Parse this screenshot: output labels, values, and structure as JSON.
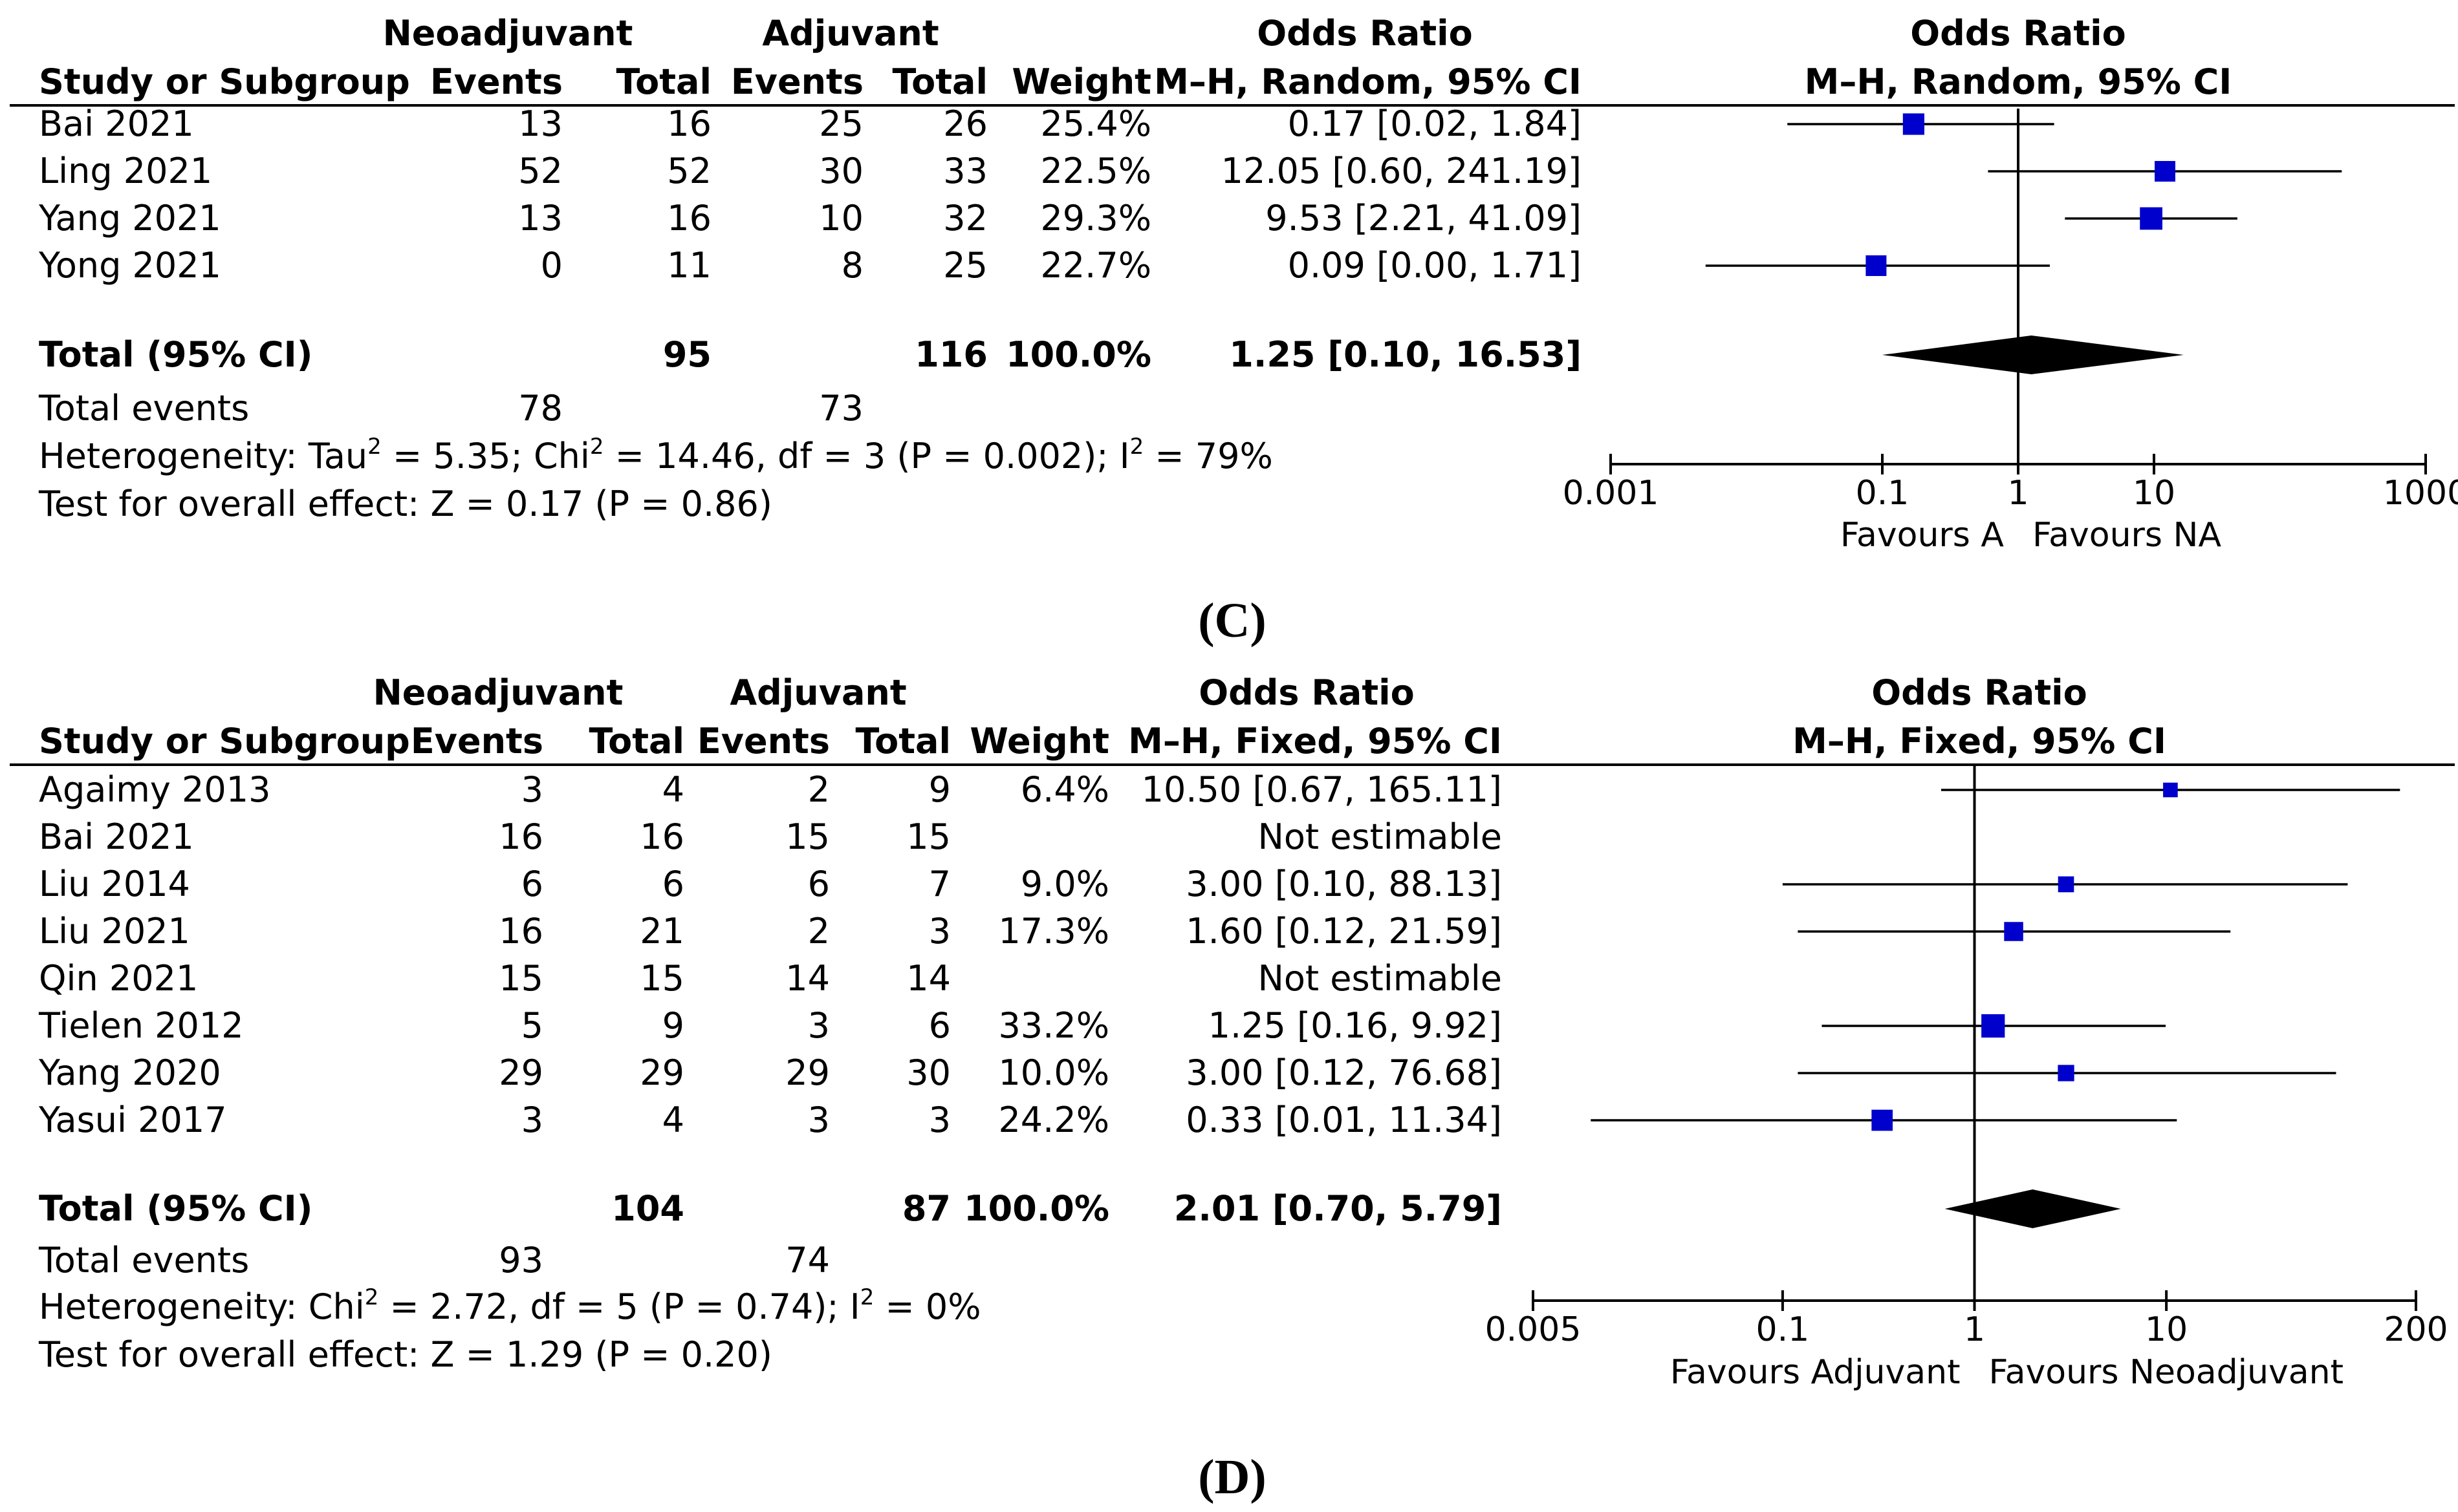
{
  "chart_data": [
    {
      "type": "forest",
      "panel": "(C)",
      "panel_letter": "C",
      "headers": {
        "group1": "Neoadjuvant",
        "group2": "Adjuvant",
        "study": "Study or Subgroup",
        "events": "Events",
        "total": "Total",
        "weight": "Weight",
        "or_title": "Odds Ratio",
        "or_method": "M–H, Random, 95% CI",
        "plot_title": "Odds Ratio",
        "plot_method": "M–H, Random, 95% CI"
      },
      "studies": [
        {
          "name": "Bai 2021",
          "e1": "13",
          "t1": "16",
          "e2": "25",
          "t2": "26",
          "weight": "25.4%",
          "or_text": "0.17 [0.02, 1.84]",
          "or": 0.17,
          "lo": 0.02,
          "hi": 1.84
        },
        {
          "name": "Ling 2021",
          "e1": "52",
          "t1": "52",
          "e2": "30",
          "t2": "33",
          "weight": "22.5%",
          "or_text": "12.05 [0.60, 241.19]",
          "or": 12.05,
          "lo": 0.6,
          "hi": 241.19
        },
        {
          "name": "Yang 2021",
          "e1": "13",
          "t1": "16",
          "e2": "10",
          "t2": "32",
          "weight": "29.3%",
          "or_text": "9.53 [2.21, 41.09]",
          "or": 9.53,
          "lo": 2.21,
          "hi": 41.09
        },
        {
          "name": "Yong 2021",
          "e1": "0",
          "t1": "11",
          "e2": "8",
          "t2": "25",
          "weight": "22.7%",
          "or_text": "0.09 [0.00, 1.71]",
          "or": 0.09,
          "lo": 0.005,
          "hi": 1.71
        }
      ],
      "total": {
        "label": "Total (95% CI)",
        "t1": "95",
        "t2": "116",
        "weight": "100.0%",
        "or_text": "1.25 [0.10, 16.53]",
        "or": 1.25,
        "lo": 0.1,
        "hi": 16.53
      },
      "total_events": {
        "label": "Total events",
        "e1": "78",
        "e2": "73"
      },
      "heterogeneity": {
        "prefix": "Heterogeneity: Tau",
        "s1": "2",
        "m1": " = 5.35; Chi",
        "s2": "2",
        "m2": " = 14.46, df = 3 (P = 0.002); I",
        "s3": "2",
        "m3": " = 79%"
      },
      "overall": "Test for overall effect: Z = 0.17 (P = 0.86)",
      "axis": {
        "scale": "log",
        "ticks": [
          0.001,
          0.1,
          1,
          10,
          1000
        ],
        "tick_labels": [
          "0.001",
          "0.1",
          "1",
          "10",
          "1000"
        ],
        "xlim": [
          0.001,
          1000
        ]
      },
      "favours_left": "Favours A",
      "favours_right": "Favours NA",
      "marker_color": "#0000cc"
    },
    {
      "type": "forest",
      "panel": "(D)",
      "panel_letter": "D",
      "headers": {
        "group1": "Neoadjuvant",
        "group2": "Adjuvant",
        "study": "Study or Subgroup",
        "events": "Events",
        "total": "Total",
        "weight": "Weight",
        "or_title": "Odds Ratio",
        "or_method": "M–H, Fixed, 95% CI",
        "plot_title": "Odds Ratio",
        "plot_method": "M–H, Fixed, 95% CI"
      },
      "studies": [
        {
          "name": "Agaimy 2013",
          "e1": "3",
          "t1": "4",
          "e2": "2",
          "t2": "9",
          "weight": "6.4%",
          "or_text": "10.50 [0.67, 165.11]",
          "or": 10.5,
          "lo": 0.67,
          "hi": 165.11
        },
        {
          "name": "Bai 2021",
          "e1": "16",
          "t1": "16",
          "e2": "15",
          "t2": "15",
          "weight": "",
          "or_text": "Not estimable",
          "or": null,
          "lo": null,
          "hi": null
        },
        {
          "name": "Liu 2014",
          "e1": "6",
          "t1": "6",
          "e2": "6",
          "t2": "7",
          "weight": "9.0%",
          "or_text": "3.00 [0.10, 88.13]",
          "or": 3.0,
          "lo": 0.1,
          "hi": 88.13
        },
        {
          "name": "Liu 2021",
          "e1": "16",
          "t1": "21",
          "e2": "2",
          "t2": "3",
          "weight": "17.3%",
          "or_text": "1.60 [0.12, 21.59]",
          "or": 1.6,
          "lo": 0.12,
          "hi": 21.59
        },
        {
          "name": "Qin 2021",
          "e1": "15",
          "t1": "15",
          "e2": "14",
          "t2": "14",
          "weight": "",
          "or_text": "Not estimable",
          "or": null,
          "lo": null,
          "hi": null
        },
        {
          "name": "Tielen 2012",
          "e1": "5",
          "t1": "9",
          "e2": "3",
          "t2": "6",
          "weight": "33.2%",
          "or_text": "1.25 [0.16, 9.92]",
          "or": 1.25,
          "lo": 0.16,
          "hi": 9.92
        },
        {
          "name": "Yang 2020",
          "e1": "29",
          "t1": "29",
          "e2": "29",
          "t2": "30",
          "weight": "10.0%",
          "or_text": "3.00 [0.12, 76.68]",
          "or": 3.0,
          "lo": 0.12,
          "hi": 76.68
        },
        {
          "name": "Yasui 2017",
          "e1": "3",
          "t1": "4",
          "e2": "3",
          "t2": "3",
          "weight": "24.2%",
          "or_text": "0.33 [0.01, 11.34]",
          "or": 0.33,
          "lo": 0.01,
          "hi": 11.34
        }
      ],
      "total": {
        "label": "Total (95% CI)",
        "t1": "104",
        "t2": "87",
        "weight": "100.0%",
        "or_text": "2.01 [0.70, 5.79]",
        "or": 2.01,
        "lo": 0.7,
        "hi": 5.79
      },
      "total_events": {
        "label": "Total events",
        "e1": "93",
        "e2": "74"
      },
      "heterogeneity": {
        "prefix": "Heterogeneity: Chi",
        "s1": "2",
        "m1": " = 2.72, df = 5 (P = 0.74); I",
        "s2": "2",
        "m2": " = 0%",
        "s3": "",
        "m3": ""
      },
      "overall": "Test for overall effect: Z = 1.29 (P = 0.20)",
      "axis": {
        "scale": "log",
        "ticks": [
          0.005,
          0.1,
          1,
          10,
          200
        ],
        "tick_labels": [
          "0.005",
          "0.1",
          "1",
          "10",
          "200"
        ],
        "xlim": [
          0.005,
          200
        ]
      },
      "favours_left": "Favours Adjuvant",
      "favours_right": "Favours Neoadjuvant",
      "marker_color": "#0000cc"
    }
  ]
}
